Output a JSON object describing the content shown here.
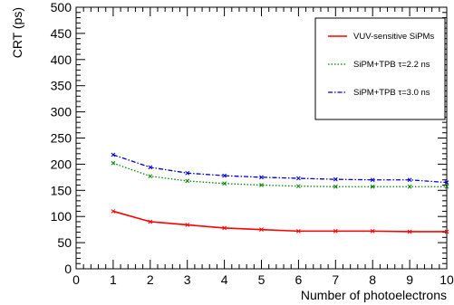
{
  "chart_data": {
    "type": "line",
    "title": "",
    "xlabel": "Number of photoelectrons",
    "ylabel": "CRT (ps)",
    "xlim": [
      0,
      10
    ],
    "ylim": [
      0,
      500
    ],
    "x_ticks": [
      0,
      1,
      2,
      3,
      4,
      5,
      6,
      7,
      8,
      9,
      10
    ],
    "y_ticks": [
      0,
      50,
      100,
      150,
      200,
      250,
      300,
      350,
      400,
      450,
      500
    ],
    "grid": false,
    "legend_position": "top-right",
    "x": [
      1,
      2,
      3,
      4,
      5,
      6,
      7,
      8,
      9,
      10
    ],
    "series": [
      {
        "name": "VUV-sensitive SiPMs",
        "color": "#ff0000",
        "line_style": "solid",
        "values": [
          110,
          90,
          84,
          78,
          75,
          72,
          72,
          72,
          71,
          71
        ]
      },
      {
        "name": "SiPM+TPB τ=2.2 ns",
        "color": "#008000",
        "line_style": "dotted",
        "values": [
          202,
          177,
          168,
          163,
          160,
          158,
          157,
          157,
          157,
          157
        ]
      },
      {
        "name": "SiPM+TPB τ=3.0 ns",
        "color": "#0000cc",
        "line_style": "dash-dot",
        "values": [
          218,
          194,
          183,
          178,
          175,
          173,
          171,
          170,
          170,
          165
        ]
      }
    ]
  }
}
